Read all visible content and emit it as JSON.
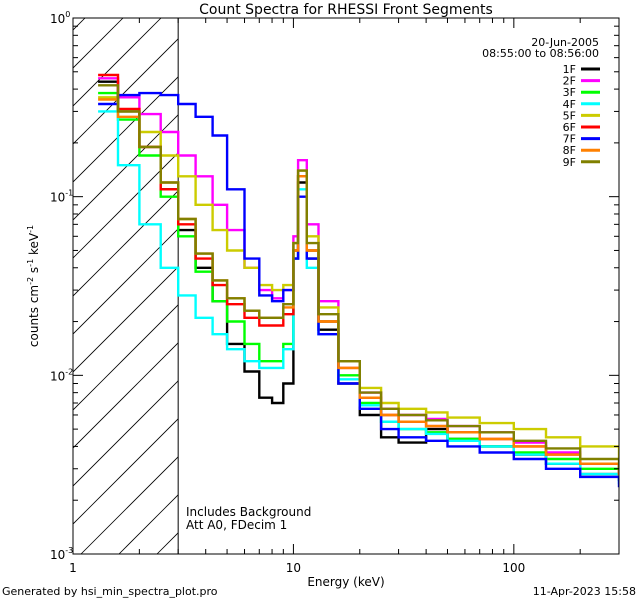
{
  "chart_data": {
    "type": "line",
    "title": "Count Spectra for RHESSI Front Segments",
    "xlabel": "Energy (keV)",
    "ylabel_parts": [
      "counts cm",
      "-2",
      " s",
      "-1",
      " keV",
      "-1"
    ],
    "x_scale": "log",
    "y_scale": "log",
    "xlim": [
      1,
      300
    ],
    "ylim": [
      0.001,
      1
    ],
    "x_tick_labels": [
      {
        "value": 1,
        "label": "1"
      },
      {
        "value": 10,
        "label": "10"
      },
      {
        "value": 100,
        "label": "100"
      }
    ],
    "y_tick_labels": [
      {
        "value": 1,
        "base": "10",
        "exp": "0"
      },
      {
        "value": 0.1,
        "base": "10",
        "exp": "-1"
      },
      {
        "value": 0.01,
        "base": "10",
        "exp": "-2"
      },
      {
        "value": 0.001,
        "base": "10",
        "exp": "-3"
      }
    ],
    "date": "20-Jun-2005",
    "time_range": "08:55:00 to 08:56:00",
    "annotation_lines": [
      "Includes Background",
      "Att A0, FDecim 1"
    ],
    "excluded_region": {
      "x_min": 1,
      "x_max": 3,
      "hatched": true
    },
    "series": [
      {
        "name": "1F",
        "color": "#000000",
        "values": [
          0.44,
          0.3,
          0.19,
          0.11,
          0.065,
          0.04,
          0.026,
          0.015,
          0.0105,
          0.0075,
          0.007,
          0.009,
          0.045,
          0.12,
          0.045,
          0.018,
          0.009,
          0.006,
          0.0045,
          0.0042,
          0.005,
          0.0044,
          0.004,
          0.0036,
          0.0032,
          0.0028,
          0.0026
        ]
      },
      {
        "name": "2F",
        "color": "#ff00ff",
        "values": [
          0.46,
          0.36,
          0.29,
          0.23,
          0.17,
          0.13,
          0.09,
          0.065,
          0.04,
          0.03,
          0.027,
          0.03,
          0.06,
          0.16,
          0.07,
          0.026,
          0.012,
          0.008,
          0.0065,
          0.006,
          0.0057,
          0.0052,
          0.0048,
          0.0042,
          0.0037,
          0.0032,
          0.0028
        ]
      },
      {
        "name": "3F",
        "color": "#00ff00",
        "values": [
          0.38,
          0.27,
          0.17,
          0.1,
          0.06,
          0.038,
          0.026,
          0.02,
          0.015,
          0.012,
          0.012,
          0.015,
          0.05,
          0.13,
          0.05,
          0.02,
          0.01,
          0.007,
          0.0055,
          0.005,
          0.0048,
          0.0044,
          0.004,
          0.0037,
          0.0034,
          0.003,
          0.0026
        ]
      },
      {
        "name": "4F",
        "color": "#00ffff",
        "values": [
          0.3,
          0.15,
          0.07,
          0.04,
          0.028,
          0.021,
          0.017,
          0.014,
          0.012,
          0.011,
          0.011,
          0.014,
          0.045,
          0.11,
          0.04,
          0.017,
          0.0095,
          0.0068,
          0.0055,
          0.005,
          0.0047,
          0.0043,
          0.004,
          0.0036,
          0.0032,
          0.0028,
          0.0025
        ]
      },
      {
        "name": "5F",
        "color": "#cccc00",
        "values": [
          0.36,
          0.3,
          0.23,
          0.17,
          0.13,
          0.09,
          0.065,
          0.05,
          0.04,
          0.032,
          0.03,
          0.032,
          0.055,
          0.14,
          0.06,
          0.024,
          0.012,
          0.0085,
          0.007,
          0.0065,
          0.0062,
          0.0058,
          0.0054,
          0.005,
          0.0045,
          0.004,
          0.0035
        ]
      },
      {
        "name": "6F",
        "color": "#ff0000",
        "values": [
          0.48,
          0.31,
          0.19,
          0.11,
          0.07,
          0.045,
          0.032,
          0.025,
          0.021,
          0.019,
          0.019,
          0.022,
          0.05,
          0.13,
          0.05,
          0.02,
          0.011,
          0.0075,
          0.006,
          0.0055,
          0.0052,
          0.0048,
          0.0044,
          0.004,
          0.0036,
          0.0032,
          0.0028
        ]
      },
      {
        "name": "7F",
        "color": "#0000ff",
        "values": [
          0.33,
          0.37,
          0.38,
          0.37,
          0.33,
          0.28,
          0.22,
          0.11,
          0.045,
          0.028,
          0.026,
          0.03,
          0.045,
          0.1,
          0.045,
          0.017,
          0.009,
          0.0065,
          0.005,
          0.0045,
          0.0043,
          0.004,
          0.0037,
          0.0034,
          0.003,
          0.0027,
          0.0024
        ]
      },
      {
        "name": "8F",
        "color": "#ff8000",
        "values": [
          0.35,
          0.28,
          0.19,
          0.12,
          0.075,
          0.048,
          0.034,
          0.027,
          0.023,
          0.021,
          0.021,
          0.024,
          0.05,
          0.13,
          0.05,
          0.02,
          0.011,
          0.0075,
          0.006,
          0.0055,
          0.0052,
          0.0048,
          0.0044,
          0.004,
          0.0036,
          0.0032,
          0.0028
        ]
      },
      {
        "name": "9F",
        "color": "#808000",
        "values": [
          0.42,
          0.3,
          0.19,
          0.12,
          0.075,
          0.048,
          0.034,
          0.027,
          0.023,
          0.021,
          0.021,
          0.025,
          0.055,
          0.14,
          0.055,
          0.022,
          0.012,
          0.008,
          0.0065,
          0.006,
          0.0056,
          0.0052,
          0.0048,
          0.0043,
          0.0039,
          0.0034,
          0.003
        ]
      }
    ],
    "energy_keV": [
      1.3,
      1.6,
      2.0,
      2.5,
      3.0,
      3.6,
      4.3,
      5.0,
      6.0,
      7.0,
      8.0,
      9.0,
      10.0,
      10.5,
      11.5,
      13.0,
      16.0,
      20.0,
      25.0,
      30.0,
      40.0,
      50.0,
      70.0,
      100.0,
      140.0,
      200.0,
      300.0
    ]
  },
  "footer": {
    "generated_by": "Generated by hsi_min_spectra_plot.pro",
    "timestamp": "11-Apr-2023 15:58"
  }
}
